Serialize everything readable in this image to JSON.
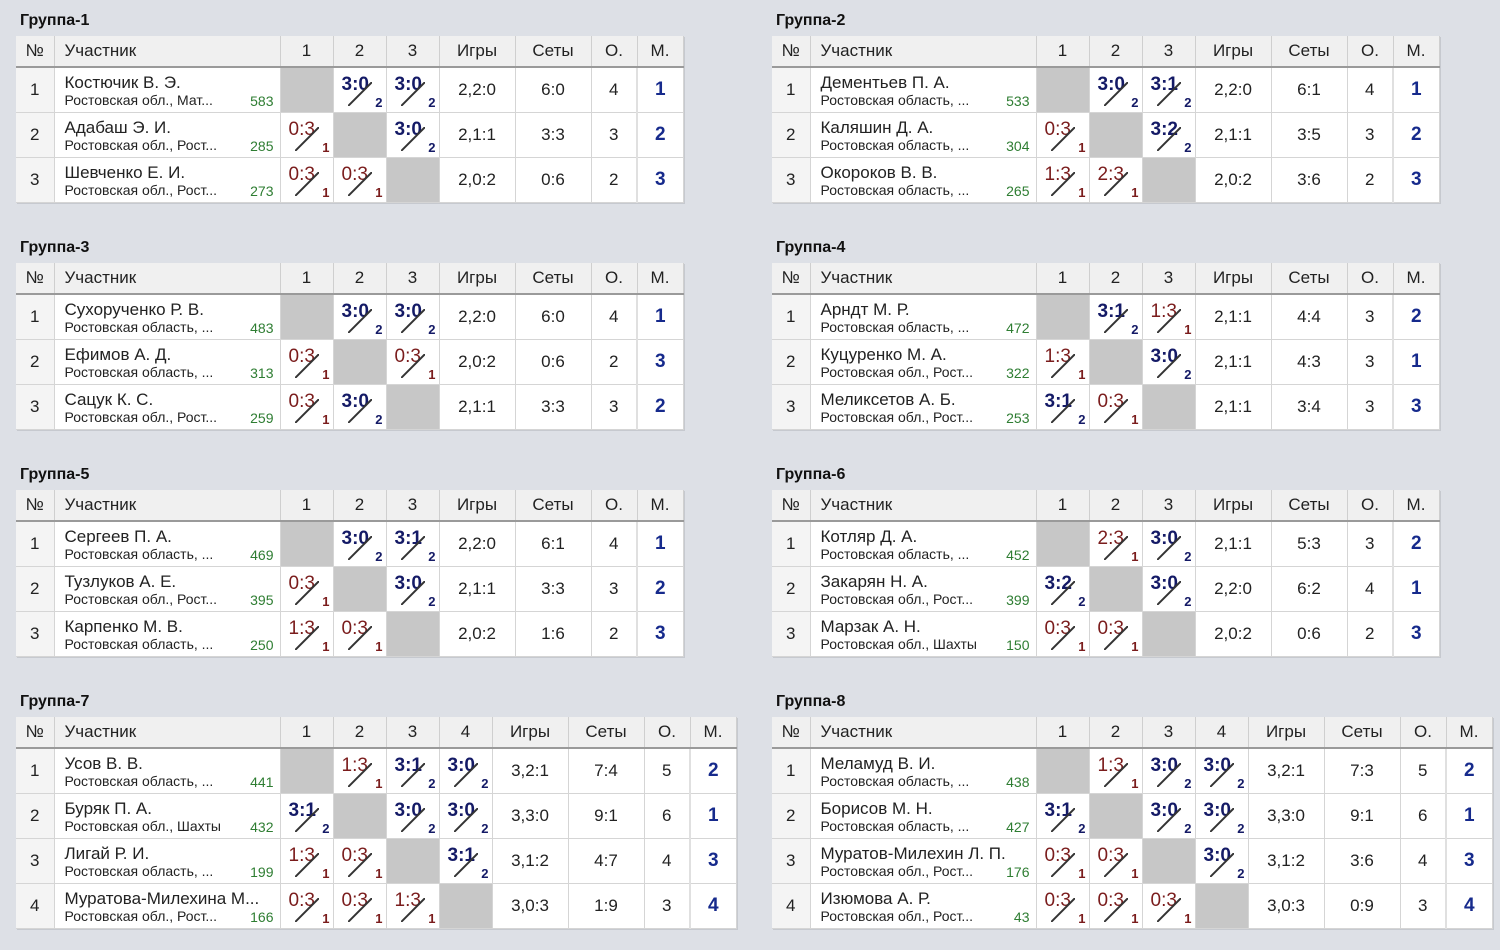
{
  "headers": {
    "no": "№",
    "participant": "Участник",
    "games": "Игры",
    "sets": "Сеты",
    "points": "О.",
    "place": "М."
  },
  "colors": {
    "win": "#141a66",
    "loss": "#7a1c1c",
    "rating": "#2e7d32",
    "place": "#162a8c"
  },
  "groups": [
    {
      "title": "Группа-1",
      "cols": [
        "1",
        "2",
        "3"
      ],
      "rows": [
        {
          "no": "1",
          "name": "Костючик В. Э.",
          "region": "Ростовская обл., Мат...",
          "rating": "583",
          "results": [
            null,
            {
              "s": "3:0",
              "p": "2",
              "w": true
            },
            {
              "s": "3:0",
              "p": "2",
              "w": true
            }
          ],
          "games": "2,2:0",
          "sets": "6:0",
          "points": "4",
          "place": "1"
        },
        {
          "no": "2",
          "name": "Адабаш Э. И.",
          "region": "Ростовская обл., Рост...",
          "rating": "285",
          "results": [
            {
              "s": "0:3",
              "p": "1",
              "w": false
            },
            null,
            {
              "s": "3:0",
              "p": "2",
              "w": true
            }
          ],
          "games": "2,1:1",
          "sets": "3:3",
          "points": "3",
          "place": "2"
        },
        {
          "no": "3",
          "name": "Шевченко Е. И.",
          "region": "Ростовская обл., Рост...",
          "rating": "273",
          "results": [
            {
              "s": "0:3",
              "p": "1",
              "w": false
            },
            {
              "s": "0:3",
              "p": "1",
              "w": false
            },
            null
          ],
          "games": "2,0:2",
          "sets": "0:6",
          "points": "2",
          "place": "3"
        }
      ]
    },
    {
      "title": "Группа-2",
      "cols": [
        "1",
        "2",
        "3"
      ],
      "rows": [
        {
          "no": "1",
          "name": "Дементьев П. А.",
          "region": "Ростовская область, ...",
          "rating": "533",
          "results": [
            null,
            {
              "s": "3:0",
              "p": "2",
              "w": true
            },
            {
              "s": "3:1",
              "p": "2",
              "w": true
            }
          ],
          "games": "2,2:0",
          "sets": "6:1",
          "points": "4",
          "place": "1"
        },
        {
          "no": "2",
          "name": "Каляшин Д. А.",
          "region": "Ростовская область, ...",
          "rating": "304",
          "results": [
            {
              "s": "0:3",
              "p": "1",
              "w": false
            },
            null,
            {
              "s": "3:2",
              "p": "2",
              "w": true
            }
          ],
          "games": "2,1:1",
          "sets": "3:5",
          "points": "3",
          "place": "2"
        },
        {
          "no": "3",
          "name": "Окороков В. В.",
          "region": "Ростовская область, ...",
          "rating": "265",
          "results": [
            {
              "s": "1:3",
              "p": "1",
              "w": false
            },
            {
              "s": "2:3",
              "p": "1",
              "w": false
            },
            null
          ],
          "games": "2,0:2",
          "sets": "3:6",
          "points": "2",
          "place": "3"
        }
      ]
    },
    {
      "title": "Группа-3",
      "cols": [
        "1",
        "2",
        "3"
      ],
      "rows": [
        {
          "no": "1",
          "name": "Сухорученко Р. В.",
          "region": "Ростовская область, ...",
          "rating": "483",
          "results": [
            null,
            {
              "s": "3:0",
              "p": "2",
              "w": true
            },
            {
              "s": "3:0",
              "p": "2",
              "w": true
            }
          ],
          "games": "2,2:0",
          "sets": "6:0",
          "points": "4",
          "place": "1"
        },
        {
          "no": "2",
          "name": "Ефимов А. Д.",
          "region": "Ростовская область, ...",
          "rating": "313",
          "results": [
            {
              "s": "0:3",
              "p": "1",
              "w": false
            },
            null,
            {
              "s": "0:3",
              "p": "1",
              "w": false
            }
          ],
          "games": "2,0:2",
          "sets": "0:6",
          "points": "2",
          "place": "3"
        },
        {
          "no": "3",
          "name": "Сацук К. С.",
          "region": "Ростовская обл., Рост...",
          "rating": "259",
          "results": [
            {
              "s": "0:3",
              "p": "1",
              "w": false
            },
            {
              "s": "3:0",
              "p": "2",
              "w": true
            },
            null
          ],
          "games": "2,1:1",
          "sets": "3:3",
          "points": "3",
          "place": "2"
        }
      ]
    },
    {
      "title": "Группа-4",
      "cols": [
        "1",
        "2",
        "3"
      ],
      "rows": [
        {
          "no": "1",
          "name": "Арндт М. Р.",
          "region": "Ростовская область, ...",
          "rating": "472",
          "results": [
            null,
            {
              "s": "3:1",
              "p": "2",
              "w": true
            },
            {
              "s": "1:3",
              "p": "1",
              "w": false
            }
          ],
          "games": "2,1:1",
          "sets": "4:4",
          "points": "3",
          "place": "2"
        },
        {
          "no": "2",
          "name": "Куцуренко М. А.",
          "region": "Ростовская обл., Рост...",
          "rating": "322",
          "results": [
            {
              "s": "1:3",
              "p": "1",
              "w": false
            },
            null,
            {
              "s": "3:0",
              "p": "2",
              "w": true
            }
          ],
          "games": "2,1:1",
          "sets": "4:3",
          "points": "3",
          "place": "1"
        },
        {
          "no": "3",
          "name": "Меликсетов А. Б.",
          "region": "Ростовская обл., Рост...",
          "rating": "253",
          "results": [
            {
              "s": "3:1",
              "p": "2",
              "w": true
            },
            {
              "s": "0:3",
              "p": "1",
              "w": false
            },
            null
          ],
          "games": "2,1:1",
          "sets": "3:4",
          "points": "3",
          "place": "3"
        }
      ]
    },
    {
      "title": "Группа-5",
      "cols": [
        "1",
        "2",
        "3"
      ],
      "rows": [
        {
          "no": "1",
          "name": "Сергеев П. А.",
          "region": "Ростовская область, ...",
          "rating": "469",
          "results": [
            null,
            {
              "s": "3:0",
              "p": "2",
              "w": true
            },
            {
              "s": "3:1",
              "p": "2",
              "w": true
            }
          ],
          "games": "2,2:0",
          "sets": "6:1",
          "points": "4",
          "place": "1"
        },
        {
          "no": "2",
          "name": "Тузлуков А. Е.",
          "region": "Ростовская обл., Рост...",
          "rating": "395",
          "results": [
            {
              "s": "0:3",
              "p": "1",
              "w": false
            },
            null,
            {
              "s": "3:0",
              "p": "2",
              "w": true
            }
          ],
          "games": "2,1:1",
          "sets": "3:3",
          "points": "3",
          "place": "2"
        },
        {
          "no": "3",
          "name": "Карпенко М. В.",
          "region": "Ростовская область, ...",
          "rating": "250",
          "results": [
            {
              "s": "1:3",
              "p": "1",
              "w": false
            },
            {
              "s": "0:3",
              "p": "1",
              "w": false
            },
            null
          ],
          "games": "2,0:2",
          "sets": "1:6",
          "points": "2",
          "place": "3"
        }
      ]
    },
    {
      "title": "Группа-6",
      "cols": [
        "1",
        "2",
        "3"
      ],
      "rows": [
        {
          "no": "1",
          "name": "Котляр Д. А.",
          "region": "Ростовская область, ...",
          "rating": "452",
          "results": [
            null,
            {
              "s": "2:3",
              "p": "1",
              "w": false
            },
            {
              "s": "3:0",
              "p": "2",
              "w": true
            }
          ],
          "games": "2,1:1",
          "sets": "5:3",
          "points": "3",
          "place": "2"
        },
        {
          "no": "2",
          "name": "Закарян Н. А.",
          "region": "Ростовская обл., Рост...",
          "rating": "399",
          "results": [
            {
              "s": "3:2",
              "p": "2",
              "w": true
            },
            null,
            {
              "s": "3:0",
              "p": "2",
              "w": true
            }
          ],
          "games": "2,2:0",
          "sets": "6:2",
          "points": "4",
          "place": "1"
        },
        {
          "no": "3",
          "name": "Марзак А. Н.",
          "region": "Ростовская обл., Шахты",
          "rating": "150",
          "results": [
            {
              "s": "0:3",
              "p": "1",
              "w": false
            },
            {
              "s": "0:3",
              "p": "1",
              "w": false
            },
            null
          ],
          "games": "2,0:2",
          "sets": "0:6",
          "points": "2",
          "place": "3"
        }
      ]
    },
    {
      "title": "Группа-7",
      "cols": [
        "1",
        "2",
        "3",
        "4"
      ],
      "rows": [
        {
          "no": "1",
          "name": "Усов В. В.",
          "region": "Ростовская область, ...",
          "rating": "441",
          "results": [
            null,
            {
              "s": "1:3",
              "p": "1",
              "w": false
            },
            {
              "s": "3:1",
              "p": "2",
              "w": true
            },
            {
              "s": "3:0",
              "p": "2",
              "w": true
            }
          ],
          "games": "3,2:1",
          "sets": "7:4",
          "points": "5",
          "place": "2"
        },
        {
          "no": "2",
          "name": "Буряк П. А.",
          "region": "Ростовская обл., Шахты",
          "rating": "432",
          "results": [
            {
              "s": "3:1",
              "p": "2",
              "w": true
            },
            null,
            {
              "s": "3:0",
              "p": "2",
              "w": true
            },
            {
              "s": "3:0",
              "p": "2",
              "w": true
            }
          ],
          "games": "3,3:0",
          "sets": "9:1",
          "points": "6",
          "place": "1"
        },
        {
          "no": "3",
          "name": "Лигай Р. И.",
          "region": "Ростовская область, ...",
          "rating": "199",
          "results": [
            {
              "s": "1:3",
              "p": "1",
              "w": false
            },
            {
              "s": "0:3",
              "p": "1",
              "w": false
            },
            null,
            {
              "s": "3:1",
              "p": "2",
              "w": true
            }
          ],
          "games": "3,1:2",
          "sets": "4:7",
          "points": "4",
          "place": "3"
        },
        {
          "no": "4",
          "name": "Муратова-Милехина М...",
          "region": "Ростовская обл., Рост...",
          "rating": "166",
          "results": [
            {
              "s": "0:3",
              "p": "1",
              "w": false
            },
            {
              "s": "0:3",
              "p": "1",
              "w": false
            },
            {
              "s": "1:3",
              "p": "1",
              "w": false
            },
            null
          ],
          "games": "3,0:3",
          "sets": "1:9",
          "points": "3",
          "place": "4"
        }
      ]
    },
    {
      "title": "Группа-8",
      "cols": [
        "1",
        "2",
        "3",
        "4"
      ],
      "rows": [
        {
          "no": "1",
          "name": "Меламуд В. И.",
          "region": "Ростовская область, ...",
          "rating": "438",
          "results": [
            null,
            {
              "s": "1:3",
              "p": "1",
              "w": false
            },
            {
              "s": "3:0",
              "p": "2",
              "w": true
            },
            {
              "s": "3:0",
              "p": "2",
              "w": true
            }
          ],
          "games": "3,2:1",
          "sets": "7:3",
          "points": "5",
          "place": "2"
        },
        {
          "no": "2",
          "name": "Борисов М. Н.",
          "region": "Ростовская область, ...",
          "rating": "427",
          "results": [
            {
              "s": "3:1",
              "p": "2",
              "w": true
            },
            null,
            {
              "s": "3:0",
              "p": "2",
              "w": true
            },
            {
              "s": "3:0",
              "p": "2",
              "w": true
            }
          ],
          "games": "3,3:0",
          "sets": "9:1",
          "points": "6",
          "place": "1"
        },
        {
          "no": "3",
          "name": "Муратов-Милехин Л. П.",
          "region": "Ростовская обл., Рост...",
          "rating": "176",
          "results": [
            {
              "s": "0:3",
              "p": "1",
              "w": false
            },
            {
              "s": "0:3",
              "p": "1",
              "w": false
            },
            null,
            {
              "s": "3:0",
              "p": "2",
              "w": true
            }
          ],
          "games": "3,1:2",
          "sets": "3:6",
          "points": "4",
          "place": "3"
        },
        {
          "no": "4",
          "name": "Изюмова А. Р.",
          "region": "Ростовская обл., Рост...",
          "rating": "43",
          "results": [
            {
              "s": "0:3",
              "p": "1",
              "w": false
            },
            {
              "s": "0:3",
              "p": "1",
              "w": false
            },
            {
              "s": "0:3",
              "p": "1",
              "w": false
            },
            null
          ],
          "games": "3,0:3",
          "sets": "0:9",
          "points": "3",
          "place": "4"
        }
      ]
    }
  ]
}
